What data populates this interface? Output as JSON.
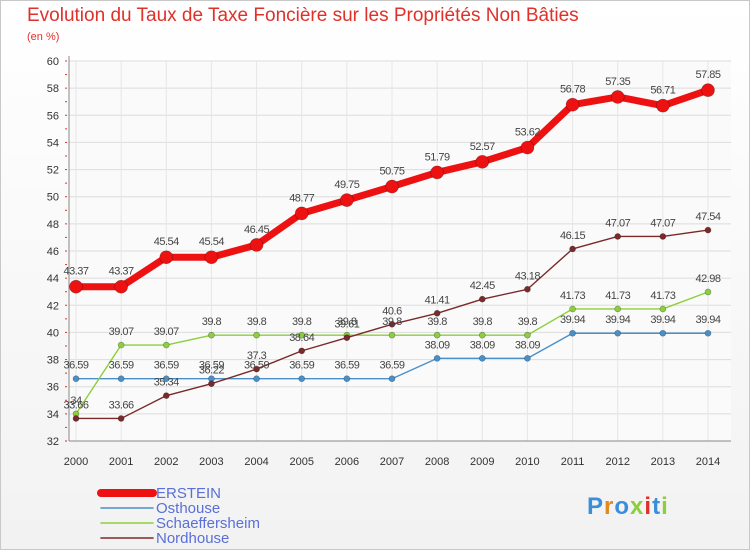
{
  "chart_data": {
    "type": "line",
    "title": "Evolution du Taux de Taxe Foncière sur les Propriétés Non Bâties",
    "subtitle": "(en %)",
    "xlabel": "",
    "ylabel": "",
    "x": [
      "2000",
      "2001",
      "2002",
      "2003",
      "2004",
      "2005",
      "2006",
      "2007",
      "2008",
      "2009",
      "2010",
      "2011",
      "2012",
      "2013",
      "2014"
    ],
    "ylim": [
      32,
      60
    ],
    "yticks": [
      32,
      34,
      36,
      38,
      40,
      42,
      44,
      46,
      48,
      50,
      52,
      54,
      56,
      58,
      60
    ],
    "grid": true,
    "series": [
      {
        "name": "ERSTEIN",
        "color": "#ee1111",
        "values": [
          43.37,
          43.37,
          45.54,
          45.54,
          46.45,
          48.77,
          49.75,
          50.75,
          51.79,
          52.57,
          53.62,
          56.78,
          57.35,
          56.71,
          57.85
        ]
      },
      {
        "name": "Osthouse",
        "color": "#4a90c8",
        "values": [
          36.59,
          36.59,
          36.59,
          36.59,
          36.59,
          36.59,
          36.59,
          36.59,
          38.09,
          38.09,
          38.09,
          39.94,
          39.94,
          39.94,
          39.94
        ]
      },
      {
        "name": "Schaeffersheim",
        "color": "#8ccf3c",
        "values": [
          34,
          39.07,
          39.07,
          39.8,
          39.8,
          39.8,
          39.8,
          39.8,
          39.8,
          39.8,
          39.8,
          41.73,
          41.73,
          41.73,
          42.98
        ]
      },
      {
        "name": "Nordhouse",
        "color": "#7a2a2a",
        "values": [
          33.66,
          33.66,
          35.34,
          36.22,
          37.3,
          38.64,
          39.61,
          40.6,
          41.41,
          42.45,
          43.18,
          46.15,
          47.07,
          47.07,
          47.54
        ]
      }
    ],
    "legend_position": "bottom-left"
  },
  "logo": {
    "text": "Proxiti",
    "letters": [
      "P",
      "r",
      "o",
      "x",
      "i",
      "t",
      "i"
    ]
  }
}
